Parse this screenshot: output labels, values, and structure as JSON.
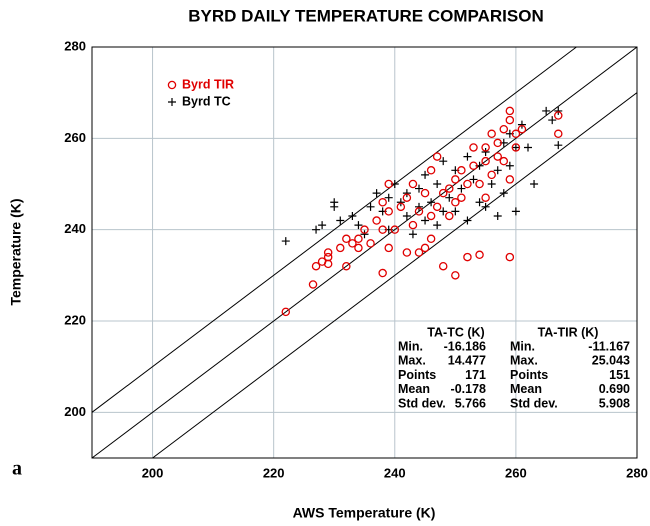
{
  "chart_data": {
    "type": "scatter",
    "title": "BYRD DAILY TEMPERATURE COMPARISON",
    "x_label": "AWS Temperature (K)",
    "y_label": "Temperature (K)",
    "annotation": "a",
    "xlim": [
      190,
      280
    ],
    "ylim": [
      190,
      280
    ],
    "xticks": [
      200,
      220,
      240,
      260,
      280
    ],
    "yticks": [
      200,
      220,
      240,
      260,
      280
    ],
    "grid": true,
    "reference_lines": [
      10,
      0,
      -10
    ],
    "series": [
      {
        "name": "Byrd TIR",
        "color": "#e00000",
        "marker": "circle",
        "x": [
          222,
          226.5,
          227,
          228,
          229,
          229,
          229,
          231,
          232,
          232,
          233,
          234,
          234,
          235,
          236,
          237,
          238,
          238,
          238,
          239,
          239,
          239,
          240,
          241,
          242,
          242,
          243,
          243,
          244,
          244,
          245,
          245,
          246,
          246,
          246,
          247,
          247,
          248,
          248,
          249,
          249,
          250,
          250,
          250,
          251,
          251,
          252,
          252,
          253,
          253,
          254,
          254,
          255,
          255,
          255,
          256,
          256,
          257,
          257,
          258,
          258,
          259,
          259,
          259,
          259,
          260,
          260,
          261,
          267,
          267
        ],
        "values": [
          222,
          228,
          232,
          233,
          235,
          232.5,
          234,
          236,
          238,
          232,
          237,
          238,
          236,
          240,
          237,
          242,
          230.5,
          240,
          246,
          236,
          244,
          250,
          240,
          245,
          247,
          235,
          241,
          250,
          244,
          235,
          248,
          236,
          238,
          243,
          253,
          245,
          256,
          248,
          232,
          249,
          243,
          251,
          246,
          230,
          253,
          247,
          250,
          234,
          258,
          254,
          250,
          234.5,
          255,
          258,
          247,
          261,
          252,
          259,
          256,
          262,
          255,
          264,
          266,
          234,
          251,
          261,
          258,
          262,
          261,
          265
        ]
      },
      {
        "name": "Byrd TC",
        "color": "#000000",
        "marker": "cross",
        "x": [
          222,
          227,
          228,
          230,
          230,
          231,
          233,
          234,
          235,
          236,
          237,
          238,
          239,
          239,
          240,
          241,
          242,
          242,
          243,
          244,
          244,
          245,
          245,
          246,
          247,
          247,
          248,
          248,
          249,
          250,
          250,
          251,
          252,
          252,
          253,
          254,
          254,
          255,
          255,
          256,
          257,
          257,
          258,
          258,
          259,
          259,
          260,
          260,
          261,
          262,
          263,
          265,
          266,
          267,
          267
        ],
        "values": [
          237.5,
          240,
          241,
          245,
          246,
          242,
          243,
          241,
          239,
          245,
          248,
          244,
          240,
          247,
          250,
          246,
          243,
          248,
          239,
          245,
          249,
          242,
          252,
          246,
          241,
          250,
          244,
          255,
          247,
          244,
          253,
          249,
          242,
          256,
          251,
          246,
          254,
          257,
          245,
          250,
          253,
          243,
          259,
          248,
          261,
          254,
          258,
          244,
          263,
          258,
          250,
          266,
          264,
          258.5,
          266
        ]
      }
    ],
    "stats": [
      {
        "header": "TA-TC (K)",
        "rows": [
          [
            "Min.",
            "-16.186"
          ],
          [
            "Max.",
            "14.477"
          ],
          [
            "Points",
            "171"
          ],
          [
            "Mean",
            "-0.178"
          ],
          [
            "Std dev.",
            "5.766"
          ]
        ]
      },
      {
        "header": "TA-TIR (K)",
        "rows": [
          [
            "Min.",
            "-11.167"
          ],
          [
            "Max.",
            "25.043"
          ],
          [
            "Points",
            "151"
          ],
          [
            "Mean",
            "0.690"
          ],
          [
            "Std dev.",
            "5.908"
          ]
        ]
      }
    ]
  }
}
